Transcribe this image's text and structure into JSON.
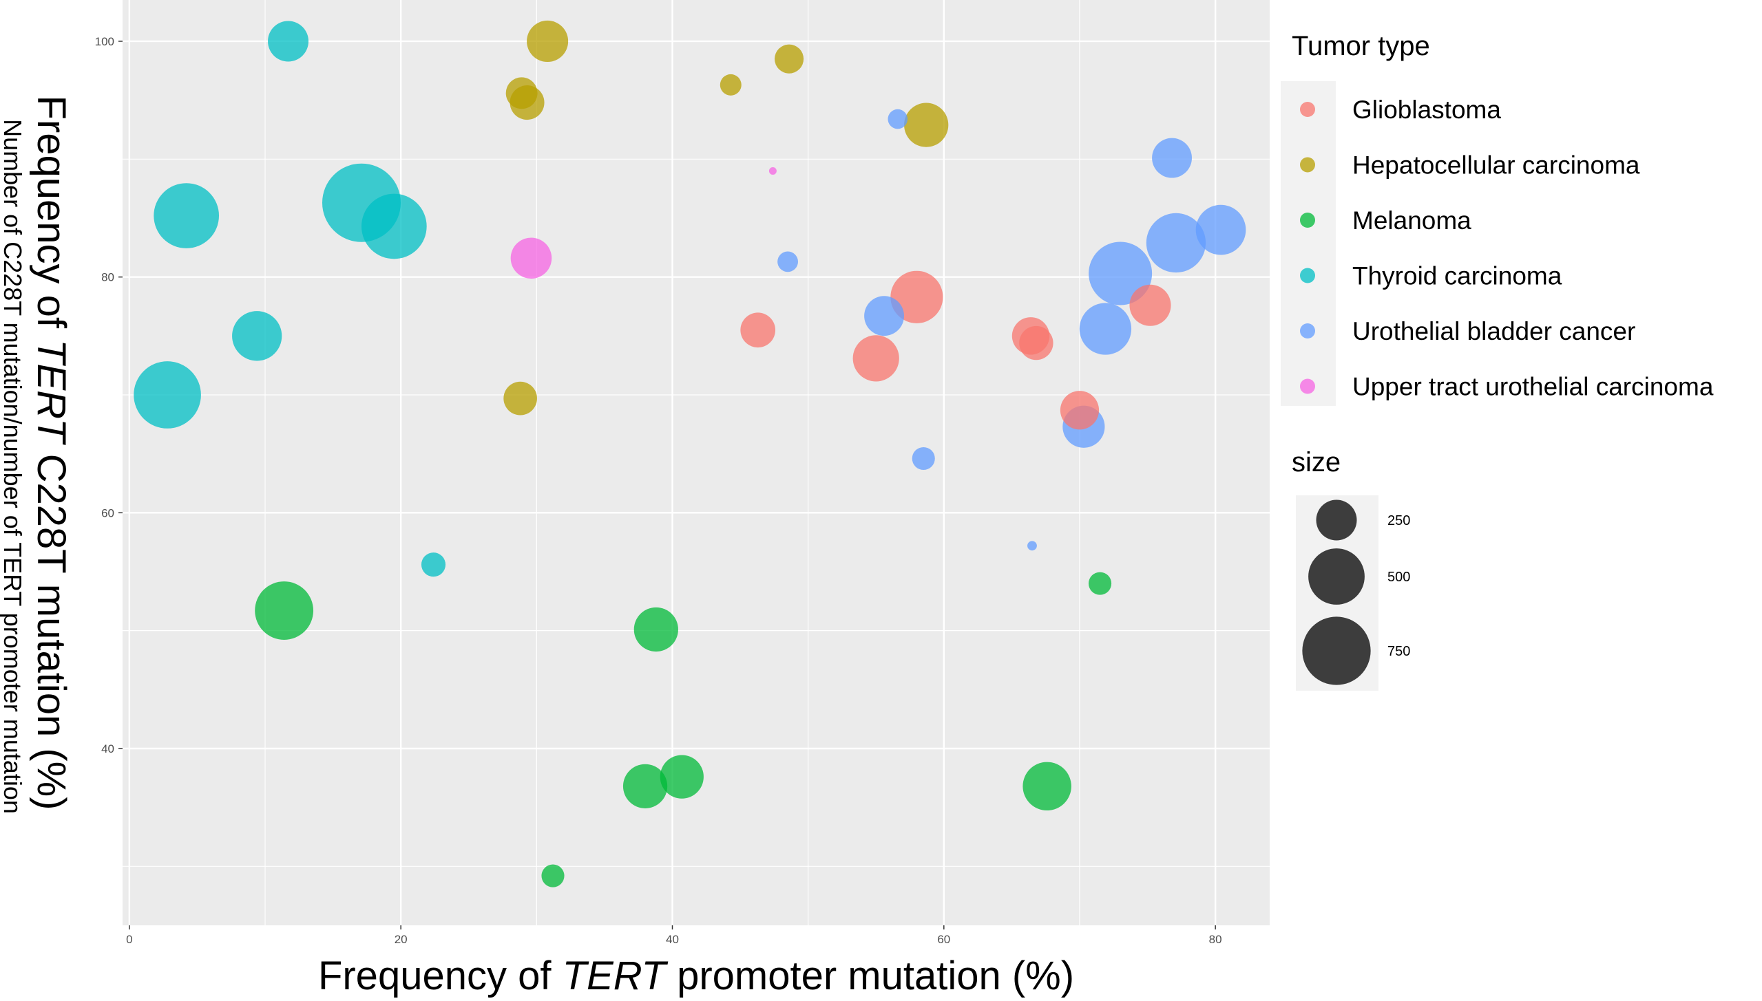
{
  "chart_data": {
    "type": "scatter",
    "subtype": "bubble",
    "xlabel": {
      "prefix": "Frequency of ",
      "italic": "TERT",
      "suffix": " promoter mutation (%)"
    },
    "ylabel": {
      "prefix": "Frequency of ",
      "italic": "TERT",
      "suffix": " C228T mutation (%)"
    },
    "ylabel_secondary": "Number of C228T mutation/number of TERT promoter mutation",
    "xlim": [
      -0.5,
      84
    ],
    "ylim": [
      25,
      103.5
    ],
    "xticks": [
      0,
      20,
      40,
      60,
      80
    ],
    "yticks": [
      40,
      60,
      80,
      100
    ],
    "grid": true,
    "color_legend": {
      "title": "Tumor type",
      "entries": [
        "Glioblastoma",
        "Hepatocellular carcinoma",
        "Melanoma",
        "Thyroid carcinoma",
        "Urothelial bladder cancer",
        "Upper tract urothelial carcinoma"
      ]
    },
    "size_legend": {
      "title": "size",
      "values": [
        250,
        500,
        750
      ]
    },
    "colors": {
      "Glioblastoma": "#F8766D",
      "Hepatocellular carcinoma": "#B79F00",
      "Melanoma": "#00BA38",
      "Thyroid carcinoma": "#00BFC4",
      "Urothelial bladder cancer": "#619CFF",
      "Upper tract urothelial carcinoma": "#F564E3"
    },
    "series": [
      {
        "name": "Glioblastoma",
        "points": [
          {
            "x": 46.3,
            "y": 75.5,
            "size": 180
          },
          {
            "x": 55.0,
            "y": 73.1,
            "size": 330
          },
          {
            "x": 58.0,
            "y": 78.3,
            "size": 430
          },
          {
            "x": 66.4,
            "y": 75.0,
            "size": 210
          },
          {
            "x": 66.8,
            "y": 74.4,
            "size": 170
          },
          {
            "x": 70.0,
            "y": 68.7,
            "size": 225
          },
          {
            "x": 75.2,
            "y": 77.6,
            "size": 260
          }
        ]
      },
      {
        "name": "Hepatocellular carcinoma",
        "points": [
          {
            "x": 30.8,
            "y": 100.0,
            "size": 260
          },
          {
            "x": 48.6,
            "y": 98.5,
            "size": 120
          },
          {
            "x": 44.3,
            "y": 96.3,
            "size": 60
          },
          {
            "x": 28.9,
            "y": 95.6,
            "size": 145
          },
          {
            "x": 29.3,
            "y": 94.8,
            "size": 175
          },
          {
            "x": 58.7,
            "y": 92.9,
            "size": 300
          },
          {
            "x": 28.8,
            "y": 69.7,
            "size": 165
          }
        ]
      },
      {
        "name": "Melanoma",
        "points": [
          {
            "x": 11.4,
            "y": 51.7,
            "size": 540
          },
          {
            "x": 38.8,
            "y": 50.1,
            "size": 300
          },
          {
            "x": 71.5,
            "y": 54.0,
            "size": 70
          },
          {
            "x": 38.0,
            "y": 36.8,
            "size": 300
          },
          {
            "x": 40.7,
            "y": 37.6,
            "size": 290
          },
          {
            "x": 67.6,
            "y": 36.8,
            "size": 365
          },
          {
            "x": 31.2,
            "y": 29.2,
            "size": 70
          }
        ]
      },
      {
        "name": "Thyroid carcinoma",
        "points": [
          {
            "x": 11.7,
            "y": 100.0,
            "size": 250
          },
          {
            "x": 17.1,
            "y": 86.3,
            "size": 1000
          },
          {
            "x": 19.5,
            "y": 84.3,
            "size": 680
          },
          {
            "x": 4.2,
            "y": 85.2,
            "size": 680
          },
          {
            "x": 9.4,
            "y": 75.0,
            "size": 385
          },
          {
            "x": 2.8,
            "y": 70.0,
            "size": 725
          },
          {
            "x": 22.4,
            "y": 55.6,
            "size": 80
          }
        ]
      },
      {
        "name": "Urothelial bladder cancer",
        "points": [
          {
            "x": 56.6,
            "y": 93.4,
            "size": 50
          },
          {
            "x": 76.8,
            "y": 90.1,
            "size": 240
          },
          {
            "x": 48.5,
            "y": 81.3,
            "size": 55
          },
          {
            "x": 80.4,
            "y": 84.0,
            "size": 390
          },
          {
            "x": 77.1,
            "y": 82.9,
            "size": 560
          },
          {
            "x": 73.0,
            "y": 80.3,
            "size": 640
          },
          {
            "x": 55.6,
            "y": 76.7,
            "size": 240
          },
          {
            "x": 71.9,
            "y": 75.6,
            "size": 420
          },
          {
            "x": 70.3,
            "y": 67.3,
            "size": 270
          },
          {
            "x": 58.5,
            "y": 64.6,
            "size": 70
          },
          {
            "x": 66.5,
            "y": 57.2,
            "size": 8
          }
        ]
      },
      {
        "name": "Upper tract urothelial carcinoma",
        "points": [
          {
            "x": 29.6,
            "y": 81.6,
            "size": 255
          },
          {
            "x": 47.4,
            "y": 89.0,
            "size": 4
          }
        ]
      }
    ]
  }
}
